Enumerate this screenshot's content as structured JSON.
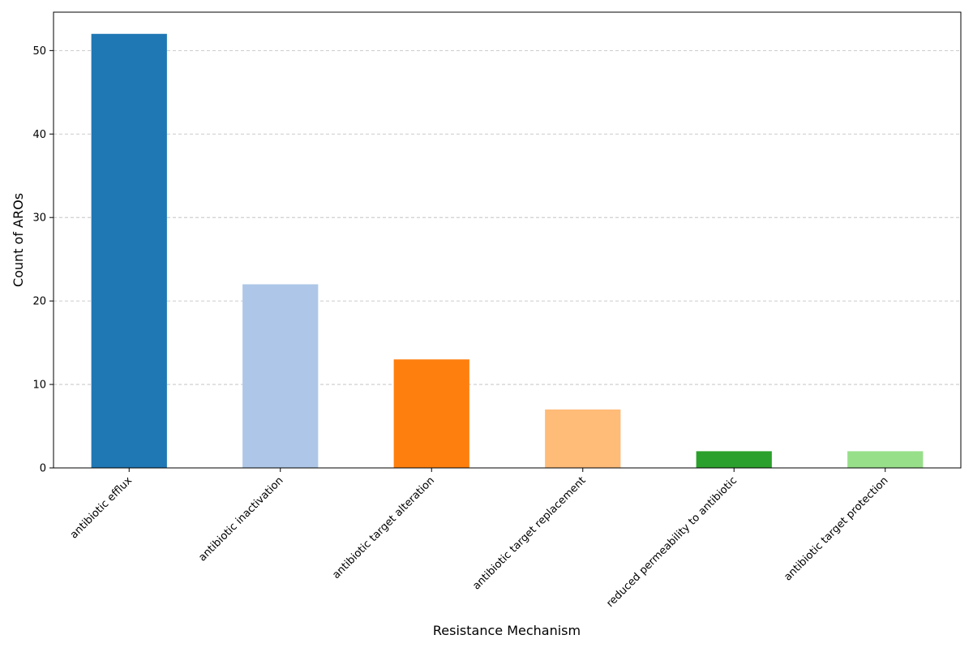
{
  "chart_data": {
    "type": "bar",
    "title": "",
    "xlabel": "Resistance Mechanism",
    "ylabel": "Count of AROs",
    "categories": [
      "antibiotic efflux",
      "antibiotic inactivation",
      "antibiotic target alteration",
      "antibiotic target replacement",
      "reduced permeability to antibiotic",
      "antibiotic target protection"
    ],
    "values": [
      52,
      22,
      13,
      7,
      2,
      2
    ],
    "colors": [
      "#1f77b4",
      "#aec7e8",
      "#ff7f0e",
      "#ffbb78",
      "#2ca02c",
      "#98df8a"
    ],
    "ylim": [
      0,
      54.6
    ],
    "yticks": [
      0,
      10,
      20,
      30,
      40,
      50
    ],
    "grid": "y-axis, dashed",
    "legend": "none"
  }
}
